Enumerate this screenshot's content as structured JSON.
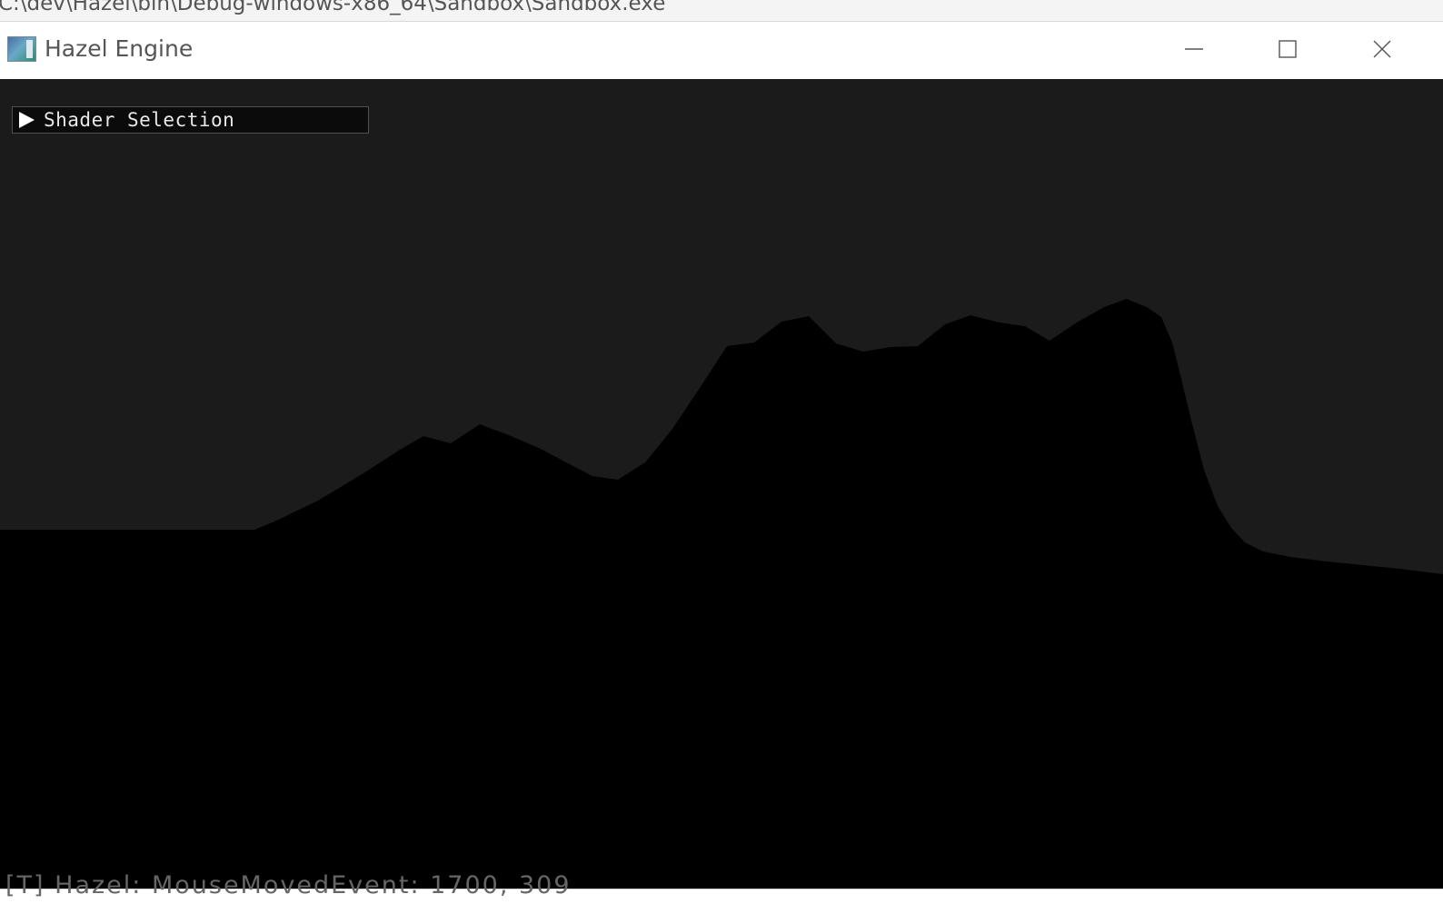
{
  "console": {
    "path_text": "C:\\dev\\Hazel\\bin\\Debug-windows-x86_64\\Sandbox\\Sandbox.exe",
    "log_text": "[T] Hazel: MouseMovedEvent: 1700, 309"
  },
  "window": {
    "title": "Hazel Engine",
    "icon": "app-window-icon",
    "buttons": {
      "minimize_icon": "minimize-icon",
      "maximize_icon": "maximize-icon",
      "close_icon": "close-icon"
    }
  },
  "viewport": {
    "background_color": "#1b1b1b",
    "terrain_color": "#000000",
    "imgui_panel": {
      "title": "Shader Selection",
      "collapsed": true,
      "arrow_icon": "collapse-arrow-icon"
    }
  }
}
